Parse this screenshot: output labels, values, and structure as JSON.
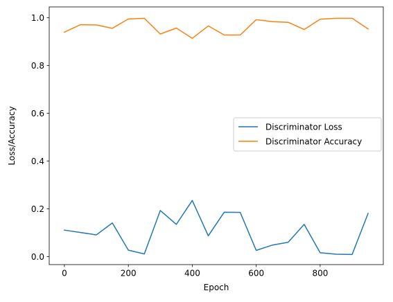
{
  "chart_data": {
    "type": "line",
    "title": "",
    "xlabel": "Epoch",
    "ylabel": "Loss/Accuracy",
    "x": [
      0,
      50,
      100,
      150,
      200,
      250,
      300,
      350,
      400,
      450,
      500,
      550,
      600,
      650,
      700,
      750,
      800,
      850,
      900,
      950
    ],
    "series": [
      {
        "name": "Discriminator Loss",
        "color": "#1f77b4",
        "values": [
          0.111,
          0.101,
          0.091,
          0.141,
          0.027,
          0.011,
          0.193,
          0.135,
          0.235,
          0.087,
          0.186,
          0.185,
          0.026,
          0.048,
          0.06,
          0.135,
          0.016,
          0.01,
          0.009,
          0.181
        ]
      },
      {
        "name": "Discriminator Accuracy",
        "color": "#ff7f0e",
        "values": [
          0.94,
          0.971,
          0.97,
          0.956,
          0.995,
          0.998,
          0.932,
          0.957,
          0.914,
          0.966,
          0.928,
          0.928,
          0.992,
          0.984,
          0.981,
          0.951,
          0.994,
          0.998,
          0.998,
          0.953
        ]
      }
    ],
    "xlim": [
      -47.5,
      997.5
    ],
    "ylim": [
      -0.0335,
      1.0455
    ],
    "xticks": [
      0,
      200,
      400,
      600,
      800
    ],
    "xtick_labels": [
      "0",
      "200",
      "400",
      "600",
      "800"
    ],
    "yticks": [
      0.0,
      0.2,
      0.4,
      0.6,
      0.8,
      1.0
    ],
    "ytick_labels": [
      "0.0",
      "0.2",
      "0.4",
      "0.6",
      "0.8",
      "1.0"
    ],
    "grid": false,
    "legend_position": "center-right"
  }
}
